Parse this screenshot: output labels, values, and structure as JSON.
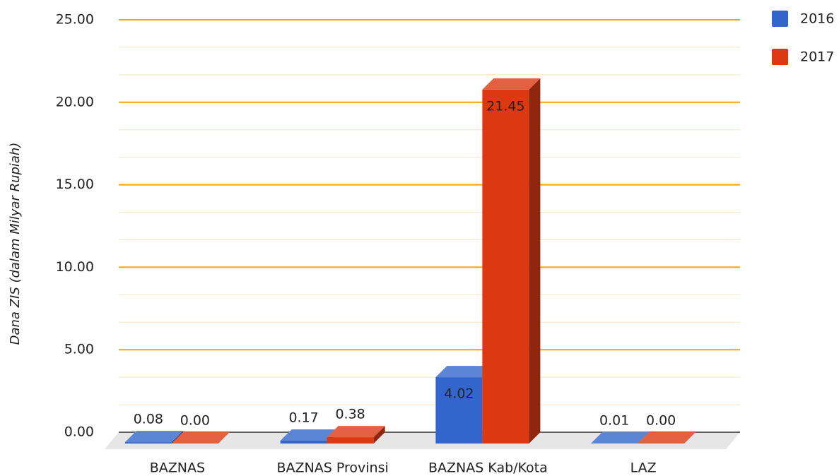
{
  "chart_data": {
    "type": "bar3d",
    "y_label": "Dana ZIS (dalam Milyar Rupiah)",
    "categories": [
      "BAZNAS",
      "BAZNAS Provinsi",
      "BAZNAS Kab/Kota",
      "LAZ"
    ],
    "series": [
      {
        "name": "2016",
        "color": "#3366cc",
        "values": [
          0.08,
          0.17,
          4.02,
          0.01
        ],
        "value_labels": [
          "0.08",
          "0.17",
          "4.02",
          "0.01"
        ]
      },
      {
        "name": "2017",
        "color": "#dc3912",
        "values": [
          0,
          0.38,
          21.45,
          0
        ],
        "value_labels": [
          "0.00",
          "0.38",
          "21.45",
          "0.00"
        ]
      }
    ],
    "ylim": [
      0,
      25
    ],
    "yticks": [
      {
        "value": 0,
        "label": "0.00"
      },
      {
        "value": 5,
        "label": "5.00"
      },
      {
        "value": 10,
        "label": "10.00"
      },
      {
        "value": 15,
        "label": "15.00"
      },
      {
        "value": 20,
        "label": "20.00"
      },
      {
        "value": 25,
        "label": "25.00"
      }
    ],
    "grid": true,
    "legend": "top-right"
  }
}
